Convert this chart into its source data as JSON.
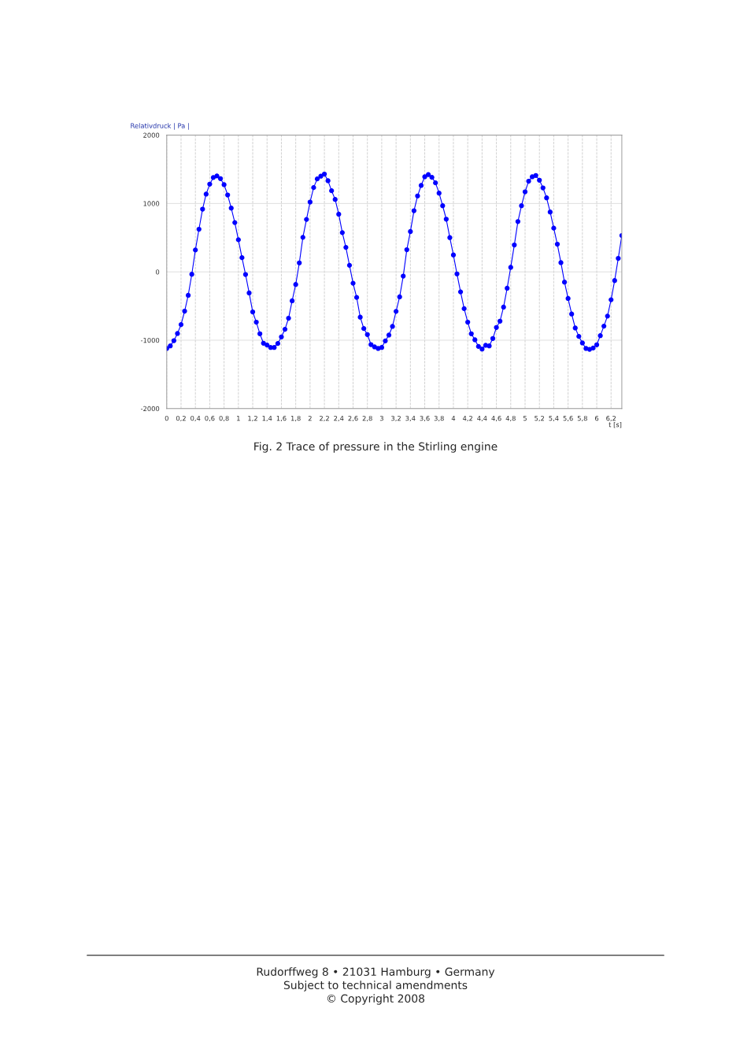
{
  "chart_data": {
    "type": "line",
    "ylabel": "Relativdruck | Pa |",
    "xlabel": "t [s]",
    "x": [
      0,
      0.05,
      0.1,
      0.15,
      0.2,
      0.25,
      0.3,
      0.35,
      0.4,
      0.45,
      0.5,
      0.55,
      0.6,
      0.65,
      0.7,
      0.75,
      0.8,
      0.85,
      0.9,
      0.95,
      1.0,
      1.05,
      1.1,
      1.15,
      1.2,
      1.25,
      1.3,
      1.35,
      1.4,
      1.45,
      1.5,
      1.55,
      1.6,
      1.65,
      1.7,
      1.75,
      1.8,
      1.85,
      1.9,
      1.95,
      2.0,
      2.05,
      2.1,
      2.15,
      2.2,
      2.25,
      2.3,
      2.35,
      2.4,
      2.45,
      2.5,
      2.55,
      2.6,
      2.65,
      2.7,
      2.75,
      2.8,
      2.85,
      2.9,
      2.95,
      3.0,
      3.05,
      3.1,
      3.15,
      3.2,
      3.25,
      3.3,
      3.35,
      3.4,
      3.45,
      3.5,
      3.55,
      3.6,
      3.65,
      3.7,
      3.75,
      3.8,
      3.85,
      3.9,
      3.95,
      4.0,
      4.05,
      4.1,
      4.15,
      4.2,
      4.25,
      4.3,
      4.35,
      4.4,
      4.45,
      4.5,
      4.55,
      4.6,
      4.65,
      4.7,
      4.75,
      4.8,
      4.85,
      4.9,
      4.95,
      5.0,
      5.05,
      5.1,
      5.15,
      5.2,
      5.25,
      5.3,
      5.35,
      5.4,
      5.45,
      5.5,
      5.55,
      5.6,
      5.65,
      5.7,
      5.75,
      5.8,
      5.85,
      5.9,
      5.95,
      6.0,
      6.05,
      6.1,
      6.15,
      6.2,
      6.25,
      6.3,
      6.35
    ],
    "series": [
      {
        "color": "#0000ff",
        "values": [
          -1121,
          -1083,
          -1006,
          -902,
          -771,
          -574,
          -343,
          -35,
          320,
          624,
          917,
          1137,
          1283,
          1380,
          1403,
          1364,
          1276,
          1125,
          933,
          721,
          470,
          208,
          -39,
          -308,
          -586,
          -736,
          -906,
          -1044,
          -1071,
          -1106,
          -1106,
          -1048,
          -952,
          -840,
          -678,
          -424,
          -185,
          131,
          505,
          767,
          1021,
          1233,
          1360,
          1399,
          1430,
          1333,
          1187,
          1060,
          844,
          574,
          358,
          96,
          -166,
          -374,
          -663,
          -829,
          -917,
          -1064,
          -1098,
          -1121,
          -1106,
          -1010,
          -925,
          -798,
          -578,
          -366,
          -62,
          324,
          590,
          894,
          1110,
          1264,
          1391,
          1422,
          1383,
          1302,
          1152,
          967,
          771,
          501,
          247,
          -30,
          -293,
          -538,
          -736,
          -906,
          -994,
          -1091,
          -1129,
          -1075,
          -1083,
          -975,
          -813,
          -721,
          -516,
          -239,
          66,
          393,
          736,
          967,
          1171,
          1326,
          1391,
          1410,
          1341,
          1229,
          1083,
          875,
          640,
          405,
          135,
          -150,
          -389,
          -617,
          -821,
          -944,
          -1040,
          -1121,
          -1133,
          -1114,
          -1067,
          -933,
          -794,
          -647,
          -408,
          -127,
          197,
          532
        ]
      }
    ],
    "xlim": [
      0,
      6.35
    ],
    "ylim": [
      -2000,
      2000
    ],
    "xticks": [
      {
        "value": 0,
        "label": "0"
      },
      {
        "value": 0.2,
        "label": "0,2"
      },
      {
        "value": 0.4,
        "label": "0,4"
      },
      {
        "value": 0.6,
        "label": "0,6"
      },
      {
        "value": 0.8,
        "label": "0,8"
      },
      {
        "value": 1,
        "label": "1"
      },
      {
        "value": 1.2,
        "label": "1,2"
      },
      {
        "value": 1.4,
        "label": "1,4"
      },
      {
        "value": 1.6,
        "label": "1,6"
      },
      {
        "value": 1.8,
        "label": "1,8"
      },
      {
        "value": 2,
        "label": "2"
      },
      {
        "value": 2.2,
        "label": "2,2"
      },
      {
        "value": 2.4,
        "label": "2,4"
      },
      {
        "value": 2.6,
        "label": "2,6"
      },
      {
        "value": 2.8,
        "label": "2,8"
      },
      {
        "value": 3,
        "label": "3"
      },
      {
        "value": 3.2,
        "label": "3,2"
      },
      {
        "value": 3.4,
        "label": "3,4"
      },
      {
        "value": 3.6,
        "label": "3,6"
      },
      {
        "value": 3.8,
        "label": "3,8"
      },
      {
        "value": 4,
        "label": "4"
      },
      {
        "value": 4.2,
        "label": "4,2"
      },
      {
        "value": 4.4,
        "label": "4,4"
      },
      {
        "value": 4.6,
        "label": "4,6"
      },
      {
        "value": 4.8,
        "label": "4,8"
      },
      {
        "value": 5,
        "label": "5"
      },
      {
        "value": 5.2,
        "label": "5,2"
      },
      {
        "value": 5.4,
        "label": "5,4"
      },
      {
        "value": 5.6,
        "label": "5,6"
      },
      {
        "value": 5.8,
        "label": "5,8"
      },
      {
        "value": 6,
        "label": "6"
      },
      {
        "value": 6.2,
        "label": "6,2"
      }
    ],
    "yticks": [
      -2000,
      -1000,
      0,
      1000,
      2000
    ],
    "grid": true,
    "marker": "circle",
    "line_style": "solid",
    "annotations": [
      "Fig. 2 Trace of pressure in the Stirling engine",
      "Rudorffweg 8 • 21031 Hamburg • Germany",
      "Subject to technical amendments",
      "© Copyright 2008"
    ]
  }
}
